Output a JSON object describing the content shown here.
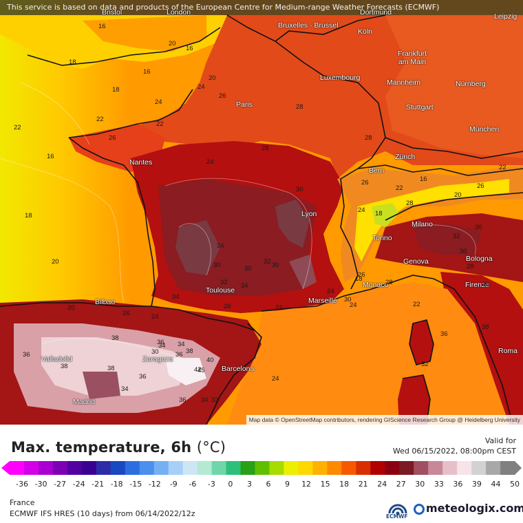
{
  "banner": "This service is based on data and products of the European Centre for Medium-range Weather Forecasts (ECMWF)",
  "attribution": "Map data © OpenStreetMap contributors, rendering GIScience Research Group @ Heidelberg University",
  "cities": [
    {
      "name": "Bristol"
    },
    {
      "name": "London"
    },
    {
      "name": "Bruxelles - Brussel"
    },
    {
      "name": "Dortmund"
    },
    {
      "name": "Leipzig"
    },
    {
      "name": "Köln"
    },
    {
      "name": "Frankfurt am Main"
    },
    {
      "name": "Luxembourg"
    },
    {
      "name": "Mannheim"
    },
    {
      "name": "Nürnberg"
    },
    {
      "name": "Paris"
    },
    {
      "name": "Stuttgart"
    },
    {
      "name": "München"
    },
    {
      "name": "Nantes"
    },
    {
      "name": "Zürich"
    },
    {
      "name": "Bern"
    },
    {
      "name": "Lyon"
    },
    {
      "name": "Milano"
    },
    {
      "name": "Torino"
    },
    {
      "name": "Genova"
    },
    {
      "name": "Bologna"
    },
    {
      "name": "Bilbao"
    },
    {
      "name": "Toulouse"
    },
    {
      "name": "Marseille"
    },
    {
      "name": "Monaco"
    },
    {
      "name": "Firenze"
    },
    {
      "name": "Valladolid"
    },
    {
      "name": "Zaragoza"
    },
    {
      "name": "Barcelona"
    },
    {
      "name": "Madrid"
    },
    {
      "name": "Roma"
    }
  ],
  "iso_labels": [
    "16",
    "20",
    "16",
    "18",
    "16",
    "22",
    "20",
    "24",
    "26",
    "18",
    "24",
    "22",
    "26",
    "22",
    "28",
    "28",
    "30",
    "28",
    "26",
    "24",
    "18",
    "28",
    "22",
    "16",
    "20",
    "22",
    "26",
    "16",
    "18",
    "20",
    "24",
    "30",
    "30",
    "20",
    "26",
    "24",
    "26",
    "22",
    "18",
    "34",
    "32",
    "34",
    "32",
    "30",
    "34",
    "28",
    "24",
    "22",
    "28",
    "30",
    "32",
    "30",
    "26",
    "36",
    "38",
    "38",
    "36",
    "34",
    "36",
    "38",
    "40",
    "42",
    "36",
    "34",
    "45",
    "32",
    "34",
    "36",
    "38",
    "34",
    "30",
    "24",
    "24",
    "26",
    "30",
    "32",
    "36",
    "38"
  ],
  "legend": {
    "title": "Max. temperature, 6h",
    "unit": "(°C)",
    "ticks": [
      "-36",
      "-30",
      "-27",
      "-24",
      "-21",
      "-18",
      "-15",
      "-12",
      "-9",
      "-6",
      "-3",
      "0",
      "3",
      "6",
      "9",
      "12",
      "15",
      "18",
      "21",
      "24",
      "27",
      "30",
      "33",
      "36",
      "39",
      "44",
      "50"
    ],
    "colors": [
      "#ff00ff",
      "#d400e8",
      "#a900d1",
      "#7c00b4",
      "#5200a0",
      "#3a0092",
      "#2c2ca8",
      "#1a48c0",
      "#2c6ee0",
      "#4a90ec",
      "#74b0f4",
      "#a6d0f8",
      "#cde6f6",
      "#b4ead4",
      "#6ed6a8",
      "#2cc07a",
      "#2aa018",
      "#60c000",
      "#a8dc00",
      "#ecf000",
      "#ffd800",
      "#ffb000",
      "#ff8a00",
      "#f55a00",
      "#d92e00",
      "#b00000",
      "#8a0010",
      "#7a1a24",
      "#a05060",
      "#c88898",
      "#e6c0c8",
      "#f6e4e8",
      "#d2d2d2",
      "#a8a8a8",
      "#808080"
    ]
  },
  "valid": {
    "label": "Valid for",
    "value": "Wed 06/15/2022, 08:00pm CEST"
  },
  "region": "France",
  "model": "ECMWF IFS HRES (10 days) from 06/14/2022/12z",
  "logos": {
    "ecmwf": "ECMWF",
    "brand": "meteologix.com"
  }
}
